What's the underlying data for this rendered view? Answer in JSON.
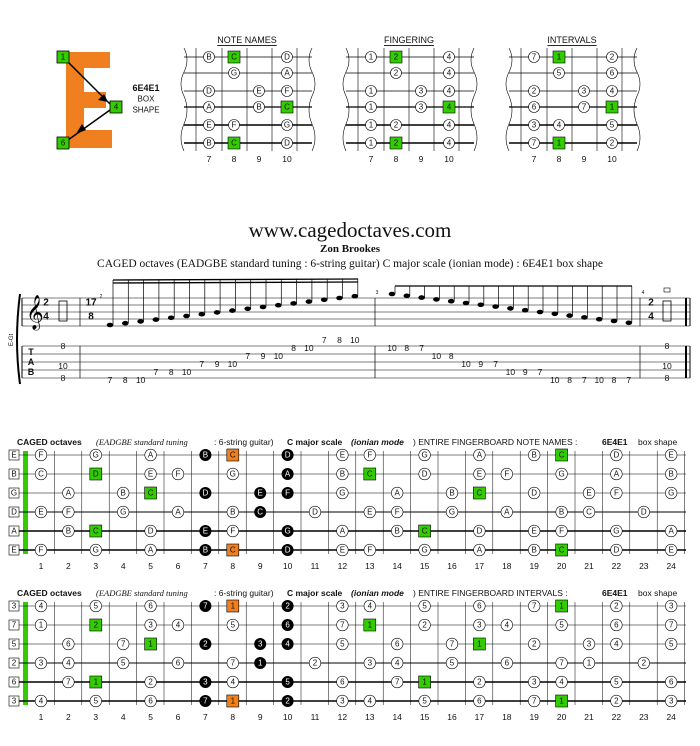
{
  "logo": {
    "letter": "E",
    "finger_top": "1",
    "finger_mid": "4",
    "finger_bot": "6"
  },
  "shape_info": {
    "name": "6E4E1",
    "line2": "BOX",
    "line3": "SHAPE"
  },
  "panels": [
    {
      "title": "NOTE NAMES",
      "frets": [
        "7",
        "8",
        "9",
        "10"
      ],
      "rows": [
        [
          "B",
          "C",
          "",
          "D"
        ],
        [
          "",
          "G",
          "",
          "A"
        ],
        [
          "D",
          "",
          "E",
          "F"
        ],
        [
          "A",
          "",
          "B",
          "C"
        ],
        [
          "E",
          "F",
          "",
          "G"
        ],
        [
          "B",
          "C",
          "",
          "D"
        ]
      ],
      "green": [
        [
          0,
          1
        ],
        [
          3,
          3
        ],
        [
          5,
          1
        ]
      ]
    },
    {
      "title": "FINGERING",
      "frets": [
        "7",
        "8",
        "9",
        "10"
      ],
      "rows": [
        [
          "1",
          "2",
          "",
          "4"
        ],
        [
          "",
          "2",
          "",
          "4"
        ],
        [
          "1",
          "",
          "3",
          "4"
        ],
        [
          "1",
          "",
          "3",
          "4"
        ],
        [
          "1",
          "2",
          "",
          "4"
        ],
        [
          "1",
          "2",
          "",
          "4"
        ]
      ],
      "green": [
        [
          0,
          1
        ],
        [
          3,
          3
        ],
        [
          5,
          1
        ]
      ]
    },
    {
      "title": "INTERVALS",
      "frets": [
        "7",
        "8",
        "9",
        "10"
      ],
      "rows": [
        [
          "7",
          "1",
          "",
          "2"
        ],
        [
          "",
          "5",
          "",
          "6"
        ],
        [
          "2",
          "",
          "3",
          "4"
        ],
        [
          "6",
          "",
          "7",
          "1"
        ],
        [
          "3",
          "4",
          "",
          "5"
        ],
        [
          "7",
          "1",
          "",
          "2"
        ]
      ],
      "green": [
        [
          0,
          1
        ],
        [
          3,
          3
        ],
        [
          5,
          1
        ]
      ]
    }
  ],
  "site": "www.cagedoctaves.com",
  "author": "Zon Brookes",
  "subtitle": "CAGED octaves (EADGBE standard tuning : 6-string guitar) C major scale (ionian mode) : 6E4E1 box shape",
  "staff": {
    "label": "E-Gt",
    "ts1": [
      "2",
      "4"
    ],
    "ts2": [
      "17",
      "8"
    ],
    "ts3": [
      "2",
      "4"
    ],
    "measure2": "2",
    "measure3": "3",
    "measure4": "4",
    "tab": [
      "T",
      "A",
      "B"
    ],
    "tab_open": [
      "8",
      "10",
      "8"
    ],
    "tab_close": [
      "8",
      "10",
      "8"
    ],
    "notes": [
      [
        "7",
        "8",
        "10",
        "7",
        "8",
        "10",
        "7",
        "9",
        "10",
        "7",
        "9",
        "10",
        "8",
        "10",
        "7",
        "8",
        "10"
      ],
      [
        "10",
        "8",
        "7",
        "10",
        "8",
        "10",
        "9",
        "7",
        "10",
        "9",
        "7",
        "10",
        "8",
        "7",
        "10",
        "8",
        "7"
      ]
    ]
  },
  "grid1": {
    "title_a": "CAGED octaves",
    "title_b": "(EADGBE standard tuning",
    "title_c": ": 6-string guitar)",
    "title_d": "C major scale",
    "title_e": "(ionian mode",
    "title_f": ") ENTIRE FINGERBOARD  NOTE NAMES  :",
    "title_g": "6E4E1",
    "title_h": "box shape",
    "strings": [
      "E",
      "B",
      "G",
      "D",
      "A",
      "E"
    ],
    "cells": [
      [
        "F",
        "",
        "G",
        "",
        "A",
        "",
        "B",
        "C",
        "",
        "D",
        "",
        "E",
        "F",
        "",
        "G",
        "",
        "A",
        "",
        "B",
        "C",
        "",
        "D",
        "",
        "E"
      ],
      [
        "C",
        "",
        "D",
        "",
        "E",
        "F",
        "",
        "G",
        "",
        "A",
        "",
        "B",
        "C",
        "",
        "D",
        "",
        "E",
        "F",
        "",
        "G",
        "",
        "A",
        "",
        "B"
      ],
      [
        "",
        "A",
        "",
        "B",
        "C",
        "",
        "D",
        "",
        "E",
        "F",
        "",
        "G",
        "",
        "A",
        "",
        "B",
        "C",
        "",
        "D",
        "",
        "E",
        "F",
        "",
        "G"
      ],
      [
        "E",
        "F",
        "",
        "G",
        "",
        "A",
        "",
        "B",
        "C",
        "",
        "D",
        "",
        "E",
        "F",
        "",
        "G",
        "",
        "A",
        "",
        "B",
        "C",
        "",
        "D",
        ""
      ],
      [
        "",
        "B",
        "C",
        "",
        "D",
        "",
        "E",
        "F",
        "",
        "G",
        "",
        "A",
        "",
        "B",
        "C",
        "",
        "D",
        "",
        "E",
        "F",
        "",
        "G",
        "",
        "A"
      ],
      [
        "F",
        "",
        "G",
        "",
        "A",
        "",
        "B",
        "C",
        "",
        "D",
        "",
        "E",
        "F",
        "",
        "G",
        "",
        "A",
        "",
        "B",
        "C",
        "",
        "D",
        "",
        "E"
      ]
    ]
  },
  "grid2": {
    "title_a": "CAGED octaves",
    "title_b": "(EADGBE standard tuning",
    "title_c": ": 6-string guitar)",
    "title_d": "C major scale",
    "title_e": "(ionian mode",
    "title_f": ") ENTIRE FINGERBOARD  INTERVALS  :",
    "title_g": "6E4E1",
    "title_h": "box shape",
    "strings": [
      "3",
      "7",
      "5",
      "2",
      "6",
      "3"
    ],
    "cells": [
      [
        "4",
        "",
        "5",
        "",
        "6",
        "",
        "7",
        "1",
        "",
        "2",
        "",
        "3",
        "4",
        "",
        "5",
        "",
        "6",
        "",
        "7",
        "1",
        "",
        "2",
        "",
        "3"
      ],
      [
        "1",
        "",
        "2",
        "",
        "3",
        "4",
        "",
        "5",
        "",
        "6",
        "",
        "7",
        "1",
        "",
        "2",
        "",
        "3",
        "4",
        "",
        "5",
        "",
        "6",
        "",
        "7"
      ],
      [
        "",
        "6",
        "",
        "7",
        "1",
        "",
        "2",
        "",
        "3",
        "4",
        "",
        "5",
        "",
        "6",
        "",
        "7",
        "1",
        "",
        "2",
        "",
        "3",
        "4",
        "",
        "5"
      ],
      [
        "3",
        "4",
        "",
        "5",
        "",
        "6",
        "",
        "7",
        "1",
        "",
        "2",
        "",
        "3",
        "4",
        "",
        "5",
        "",
        "6",
        "",
        "7",
        "1",
        "",
        "2",
        ""
      ],
      [
        "",
        "7",
        "1",
        "",
        "2",
        "",
        "3",
        "4",
        "",
        "5",
        "",
        "6",
        "",
        "7",
        "1",
        "",
        "2",
        "",
        "3",
        "4",
        "",
        "5",
        "",
        "6"
      ],
      [
        "4",
        "",
        "5",
        "",
        "6",
        "",
        "7",
        "1",
        "",
        "2",
        "",
        "3",
        "4",
        "",
        "5",
        "",
        "6",
        "",
        "7",
        "1",
        "",
        "2",
        "",
        "3"
      ]
    ]
  },
  "fret_numbers": [
    "1",
    "2",
    "3",
    "4",
    "5",
    "6",
    "7",
    "8",
    "9",
    "10",
    "11",
    "12",
    "13",
    "14",
    "15",
    "16",
    "17",
    "18",
    "19",
    "20",
    "21",
    "22",
    "23",
    "24"
  ],
  "colors": {
    "green": "#33cc00",
    "orange": "#f07f20",
    "black": "#000000",
    "logo": "#f07f20"
  }
}
